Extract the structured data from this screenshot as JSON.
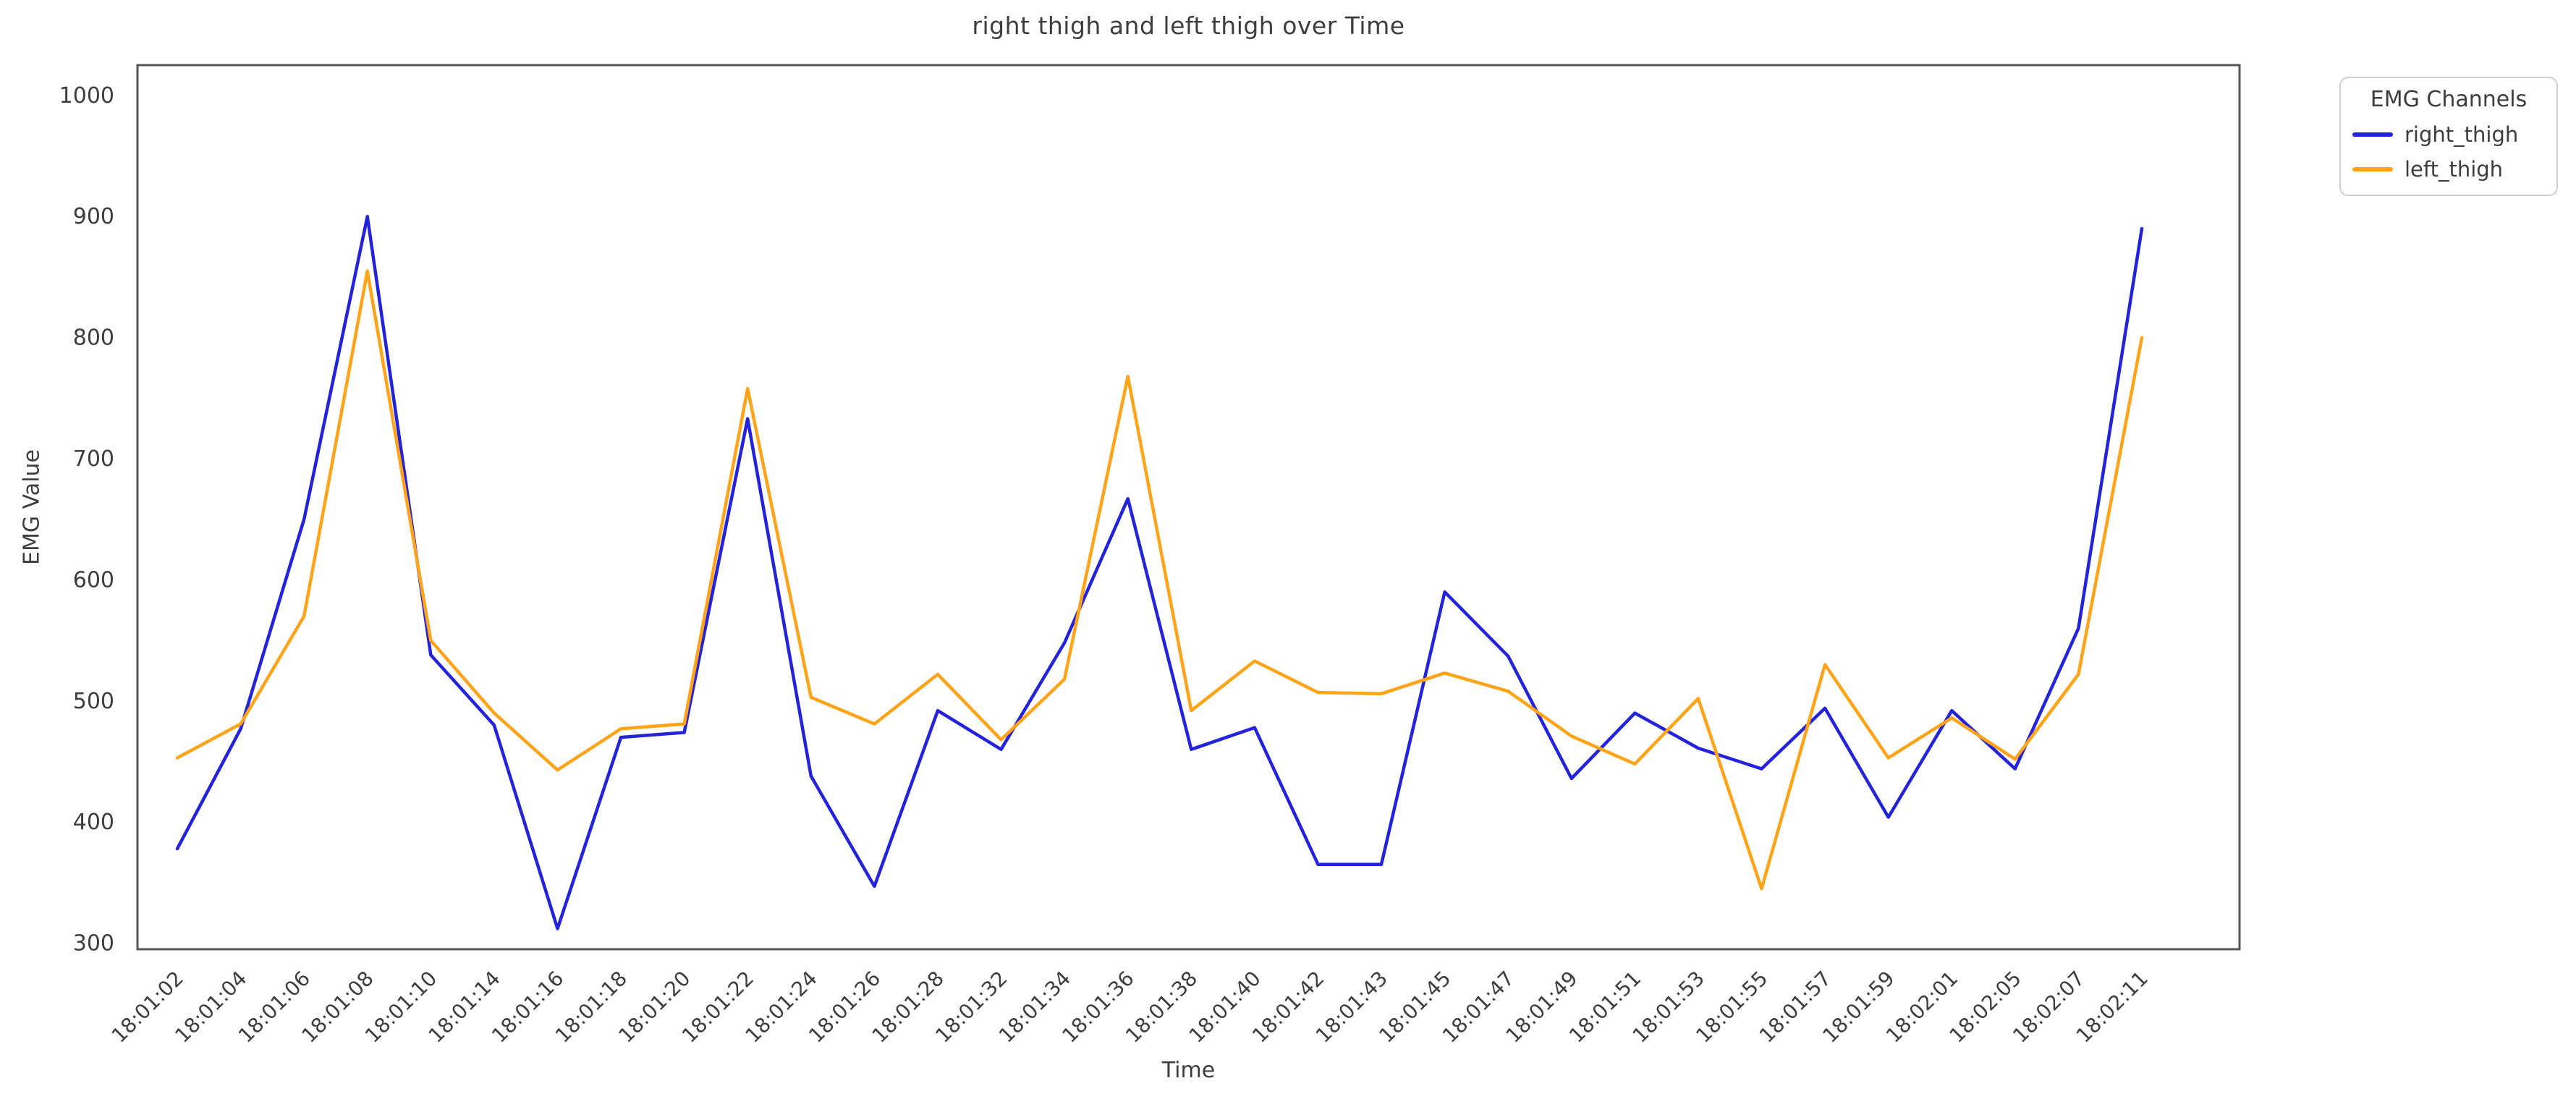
{
  "figure": {
    "background": "#ffffff",
    "frame_color": "#555555",
    "text_color": "#3d3d3d"
  },
  "chart_data": {
    "type": "line",
    "title": "right thigh and left thigh over Time",
    "xlabel": "Time",
    "ylabel": "EMG Value",
    "legend_title": "EMG Channels",
    "legend_position": "outside upper right",
    "grid": false,
    "ylim": [
      295,
      1025
    ],
    "yticks": [
      300,
      400,
      500,
      600,
      700,
      800,
      900,
      1000
    ],
    "categories": [
      "18:01:02",
      "18:01:04",
      "18:01:06",
      "18:01:08",
      "18:01:10",
      "18:01:14",
      "18:01:16",
      "18:01:18",
      "18:01:20",
      "18:01:22",
      "18:01:24",
      "18:01:26",
      "18:01:28",
      "18:01:32",
      "18:01:34",
      "18:01:36",
      "18:01:38",
      "18:01:40",
      "18:01:42",
      "18:01:43",
      "18:01:45",
      "18:01:47",
      "18:01:49",
      "18:01:51",
      "18:01:53",
      "18:01:55",
      "18:01:57",
      "18:01:59",
      "18:02:01",
      "18:02:05",
      "18:02:07",
      "18:02:11"
    ],
    "series": [
      {
        "name": "right_thigh",
        "color": "#2323dd",
        "values": [
          378,
          477,
          650,
          900,
          538,
          480,
          312,
          470,
          474,
          733,
          438,
          347,
          492,
          460,
          548,
          667,
          460,
          478,
          365,
          365,
          590,
          537,
          436,
          490,
          461,
          444,
          494,
          404,
          492,
          444,
          560,
          890
        ]
      },
      {
        "name": "left_thigh",
        "color": "#ffa418",
        "values": [
          453,
          481,
          570,
          855,
          550,
          490,
          443,
          477,
          481,
          758,
          503,
          481,
          522,
          468,
          518,
          768,
          492,
          533,
          507,
          506,
          523,
          508,
          471,
          448,
          502,
          345,
          530,
          453,
          486,
          452,
          522,
          800
        ]
      }
    ]
  }
}
